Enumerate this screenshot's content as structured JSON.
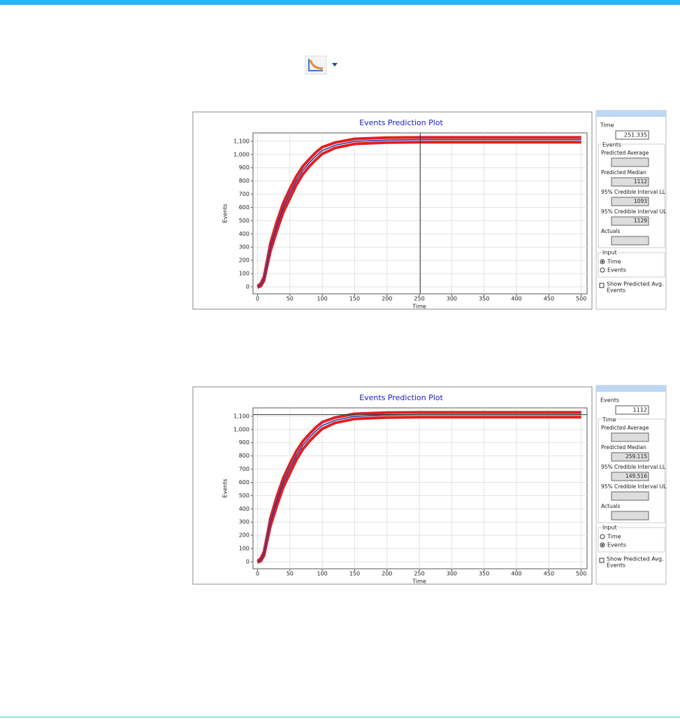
{
  "chart_data": [
    {
      "type": "line",
      "title": "Events Prediction Plot",
      "x_label": "Time",
      "y_label": "Events",
      "x": [
        0,
        5,
        10,
        15,
        20,
        30,
        40,
        50,
        60,
        70,
        80,
        90,
        100,
        120,
        150,
        200,
        250,
        300,
        400,
        500
      ],
      "series": [
        {
          "color": "#e02020",
          "values": [
            -5,
            5,
            45,
            160,
            270,
            425,
            565,
            668,
            770,
            850,
            910,
            960,
            1005,
            1050,
            1080,
            1090,
            1093,
            1093,
            1093,
            1093
          ]
        },
        {
          "color": "#e02020",
          "values": [
            5,
            25,
            75,
            200,
            330,
            495,
            635,
            740,
            835,
            910,
            965,
            1015,
            1055,
            1090,
            1118,
            1127,
            1129,
            1129,
            1129,
            1129
          ]
        },
        {
          "color": "#2a3aa8",
          "values": [
            0,
            15,
            60,
            180,
            300,
            460,
            600,
            704,
            802,
            880,
            938,
            988,
            1030,
            1070,
            1099,
            1109,
            1112,
            1112,
            1112,
            1112
          ]
        }
      ],
      "xlim": [
        -7,
        509
      ],
      "ylim": [
        -53,
        1163
      ],
      "xticks": [
        0,
        50,
        100,
        150,
        200,
        250,
        300,
        350,
        400,
        450,
        500
      ],
      "yticks": [
        0,
        100,
        200,
        300,
        400,
        500,
        600,
        700,
        800,
        900,
        {
          "value": 1000,
          "label": "1,000"
        },
        {
          "value": 1100,
          "label": "1,100"
        }
      ],
      "grid": true,
      "cursor_axis": "x"
    },
    {
      "type": "line",
      "title": "Events Prediction Plot",
      "x_label": "Time",
      "y_label": "Events",
      "x": [
        0,
        5,
        10,
        15,
        20,
        30,
        40,
        50,
        60,
        70,
        80,
        90,
        100,
        120,
        150,
        200,
        250,
        300,
        400,
        500
      ],
      "series": [
        {
          "color": "#e02020",
          "values": [
            -5,
            5,
            45,
            160,
            270,
            425,
            565,
            668,
            770,
            850,
            910,
            960,
            1005,
            1050,
            1080,
            1090,
            1093,
            1093,
            1093,
            1093
          ]
        },
        {
          "color": "#e02020",
          "values": [
            5,
            25,
            75,
            200,
            330,
            495,
            635,
            740,
            835,
            910,
            965,
            1015,
            1055,
            1090,
            1118,
            1127,
            1129,
            1129,
            1129,
            1129
          ]
        },
        {
          "color": "#2a3aa8",
          "values": [
            0,
            15,
            60,
            180,
            300,
            460,
            600,
            704,
            802,
            880,
            938,
            988,
            1030,
            1070,
            1099,
            1109,
            1112,
            1112,
            1112,
            1112
          ]
        }
      ],
      "xlim": [
        -7,
        509
      ],
      "ylim": [
        -53,
        1163
      ],
      "xticks": [
        0,
        50,
        100,
        150,
        200,
        250,
        300,
        350,
        400,
        450,
        500
      ],
      "yticks": [
        0,
        100,
        200,
        300,
        400,
        500,
        600,
        700,
        800,
        900,
        {
          "value": 1000,
          "label": "1,000"
        },
        {
          "value": 1100,
          "label": "1,100"
        }
      ],
      "grid": true,
      "cursor_axis": "y"
    }
  ],
  "panels": [
    {
      "input_label": "Time",
      "input_value": "251.335",
      "group_title": "Events",
      "fields": [
        {
          "label": "Predicted Average"
        },
        {
          "label": "Predicted Median",
          "value": "1112"
        },
        {
          "label": "95% Credible Interval LL",
          "value": "1093"
        },
        {
          "label": "95% Credible Interval UL",
          "value": "1129"
        },
        {
          "label": "Actuals"
        }
      ],
      "input_group": {
        "title": "Input",
        "options": [
          "Time",
          "Events"
        ],
        "selected": 0
      },
      "checkbox": [
        "Show Predicted Avg.",
        "Events"
      ]
    },
    {
      "input_label": "Events",
      "input_value": "1112",
      "group_title": "Time",
      "fields": [
        {
          "label": "Predicted Average"
        },
        {
          "label": "Predicted Median",
          "value": "259.115"
        },
        {
          "label": "95% Credible Interval LL",
          "value": "149.516"
        },
        {
          "label": "95% Credible Interval UL"
        },
        {
          "label": "Actuals"
        }
      ],
      "input_group": {
        "title": "Input",
        "options": [
          "Time",
          "Events"
        ],
        "selected": 1
      },
      "checkbox": [
        "Show Predicted Avg.",
        "Events"
      ]
    }
  ]
}
